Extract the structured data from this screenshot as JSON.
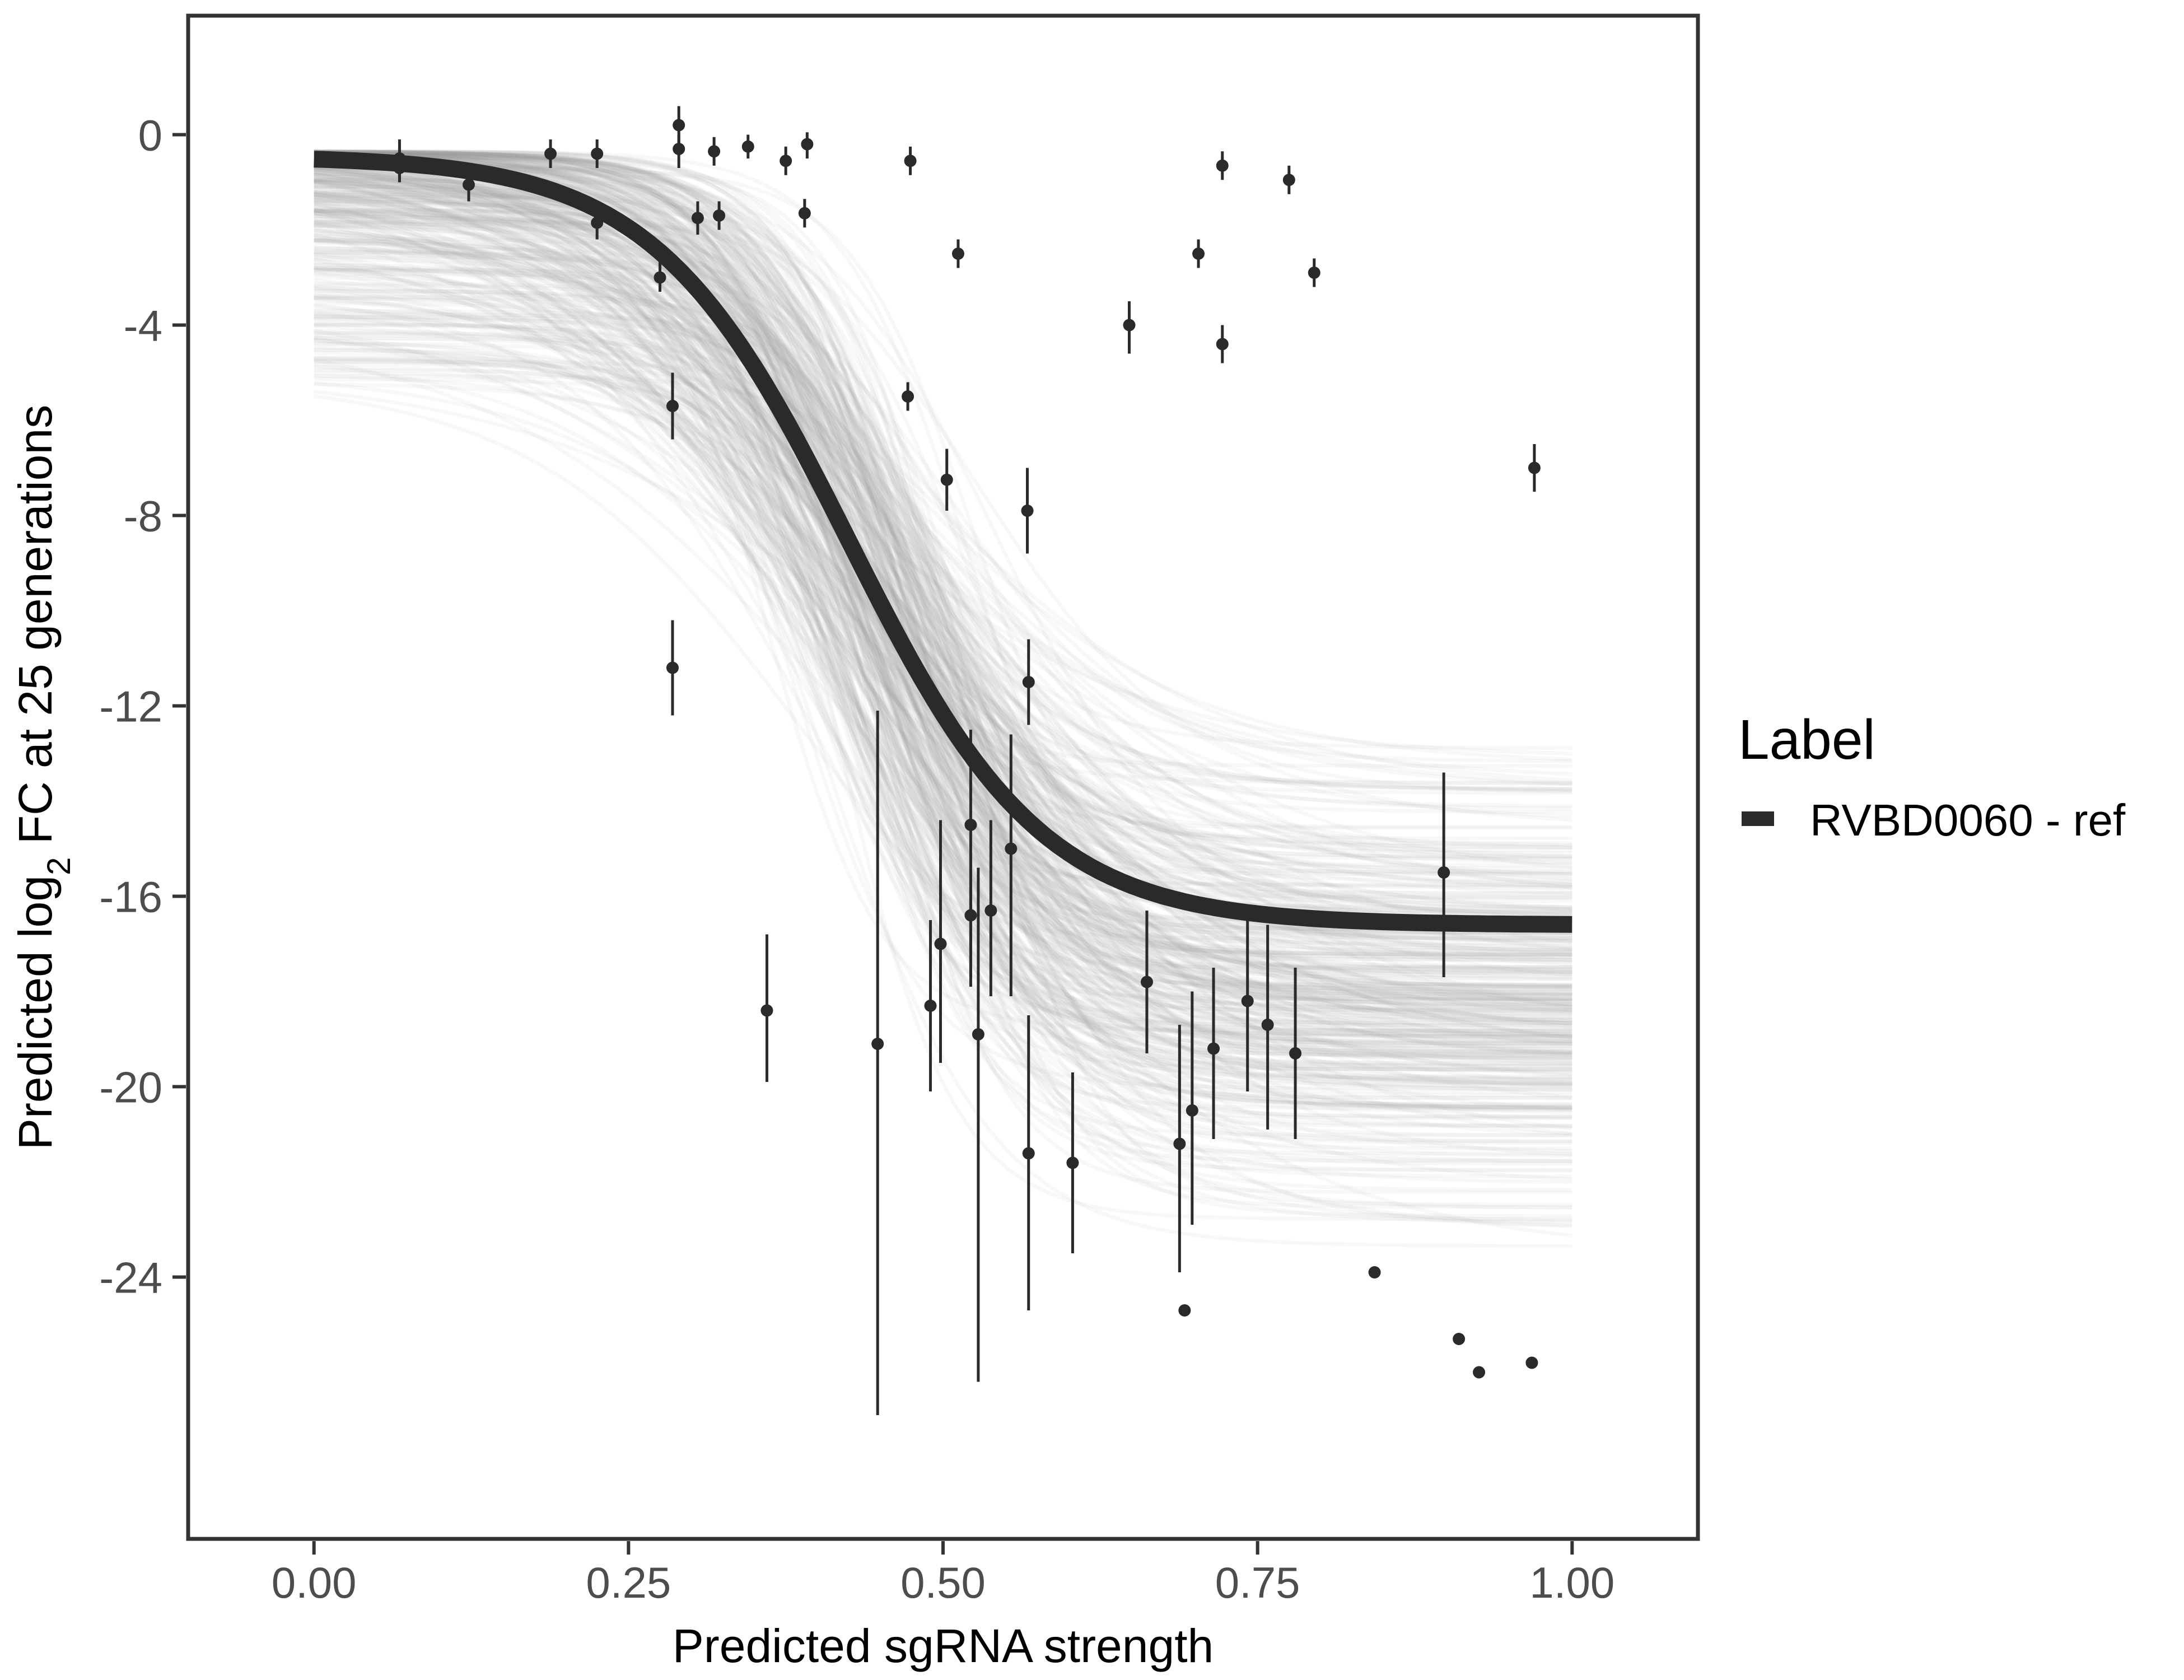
{
  "chart_data": {
    "type": "scatter",
    "xlabel": "Predicted sgRNA strength",
    "ylabel_prefix": "Predicted  log",
    "ylabel_sub": "2",
    "ylabel_suffix": " FC at 25 generations",
    "xlim": [
      -0.1,
      1.1
    ],
    "ylim": [
      -29.5,
      2.5
    ],
    "x_ticks": [
      {
        "value": 0.0,
        "label": "0.00"
      },
      {
        "value": 0.25,
        "label": "0.25"
      },
      {
        "value": 0.5,
        "label": "0.50"
      },
      {
        "value": 0.75,
        "label": "0.75"
      },
      {
        "value": 1.0,
        "label": "1.00"
      }
    ],
    "y_ticks": [
      {
        "value": 0,
        "label": "0"
      },
      {
        "value": -4,
        "label": "-4"
      },
      {
        "value": -8,
        "label": "-8"
      },
      {
        "value": -12,
        "label": "-12"
      },
      {
        "value": -16,
        "label": "-16"
      },
      {
        "value": -20,
        "label": "-20"
      },
      {
        "value": -24,
        "label": "-24"
      }
    ],
    "grid": false,
    "legend": {
      "title": "Label",
      "placement": "right",
      "entries": [
        {
          "label": "RVBD0060 - ref",
          "color": "#2a2a2a"
        }
      ]
    },
    "fit_curve": {
      "name": "RVBD0060 - ref",
      "model": "logistic",
      "top": -0.45,
      "bottom": -16.6,
      "midpoint": 0.425,
      "slope": 13.0,
      "color": "#2a2a2a"
    },
    "posterior_band": {
      "color": "#a0a0a0",
      "top_range": [
        -5.3,
        -0.35
      ],
      "bottom_range": [
        -24.6,
        -11.6
      ],
      "midpoint_range": [
        0.33,
        0.56
      ],
      "slope_range": [
        7,
        22
      ]
    },
    "points": [
      {
        "x": 0.068,
        "y": -0.5,
        "ymin": -0.9,
        "ymax": -0.1
      },
      {
        "x": 0.068,
        "y": -0.7,
        "ymin": -1.0,
        "ymax": -0.3
      },
      {
        "x": 0.123,
        "y": -1.05,
        "ymin": -1.4,
        "ymax": -0.7
      },
      {
        "x": 0.188,
        "y": -0.4,
        "ymin": -0.7,
        "ymax": -0.1
      },
      {
        "x": 0.225,
        "y": -0.4,
        "ymin": -0.7,
        "ymax": -0.1
      },
      {
        "x": 0.225,
        "y": -1.85,
        "ymin": -2.2,
        "ymax": -1.5
      },
      {
        "x": 0.275,
        "y": -3.0,
        "ymin": -3.3,
        "ymax": -2.6
      },
      {
        "x": 0.285,
        "y": -5.7,
        "ymin": -6.4,
        "ymax": -5.0
      },
      {
        "x": 0.285,
        "y": -11.2,
        "ymin": -12.2,
        "ymax": -10.2
      },
      {
        "x": 0.29,
        "y": 0.2,
        "ymin": -0.2,
        "ymax": 0.6
      },
      {
        "x": 0.29,
        "y": -0.3,
        "ymin": -0.7,
        "ymax": 0.0
      },
      {
        "x": 0.305,
        "y": -1.75,
        "ymin": -2.1,
        "ymax": -1.4
      },
      {
        "x": 0.318,
        "y": -0.35,
        "ymin": -0.65,
        "ymax": -0.05
      },
      {
        "x": 0.322,
        "y": -1.7,
        "ymin": -2.0,
        "ymax": -1.4
      },
      {
        "x": 0.345,
        "y": -0.25,
        "ymin": -0.5,
        "ymax": 0.0
      },
      {
        "x": 0.36,
        "y": -18.4,
        "ymin": -19.9,
        "ymax": -16.8
      },
      {
        "x": 0.375,
        "y": -0.55,
        "ymin": -0.85,
        "ymax": -0.25
      },
      {
        "x": 0.39,
        "y": -1.65,
        "ymin": -1.95,
        "ymax": -1.35
      },
      {
        "x": 0.392,
        "y": -0.2,
        "ymin": -0.5,
        "ymax": 0.05
      },
      {
        "x": 0.448,
        "y": -19.1,
        "ymin": -26.9,
        "ymax": -12.1
      },
      {
        "x": 0.472,
        "y": -5.5,
        "ymin": -5.8,
        "ymax": -5.2
      },
      {
        "x": 0.474,
        "y": -0.55,
        "ymin": -0.85,
        "ymax": -0.25
      },
      {
        "x": 0.49,
        "y": -18.3,
        "ymin": -20.1,
        "ymax": -16.5
      },
      {
        "x": 0.498,
        "y": -17.0,
        "ymin": -19.5,
        "ymax": -14.4
      },
      {
        "x": 0.503,
        "y": -7.25,
        "ymin": -7.9,
        "ymax": -6.6
      },
      {
        "x": 0.512,
        "y": -2.5,
        "ymin": -2.8,
        "ymax": -2.2
      },
      {
        "x": 0.522,
        "y": -14.5,
        "ymin": -17.9,
        "ymax": -12.5
      },
      {
        "x": 0.522,
        "y": -16.4,
        "ymin": -17.7,
        "ymax": -15.1
      },
      {
        "x": 0.528,
        "y": -18.9,
        "ymin": -26.2,
        "ymax": -15.4
      },
      {
        "x": 0.538,
        "y": -16.3,
        "ymin": -18.1,
        "ymax": -14.4
      },
      {
        "x": 0.554,
        "y": -15.0,
        "ymin": -18.1,
        "ymax": -12.6
      },
      {
        "x": 0.567,
        "y": -7.9,
        "ymin": -8.8,
        "ymax": -7.0
      },
      {
        "x": 0.568,
        "y": -11.5,
        "ymin": -12.4,
        "ymax": -10.6
      },
      {
        "x": 0.568,
        "y": -21.4,
        "ymin": -24.7,
        "ymax": -18.5
      },
      {
        "x": 0.603,
        "y": -21.6,
        "ymin": -23.5,
        "ymax": -19.7
      },
      {
        "x": 0.648,
        "y": -4.0,
        "ymin": -4.6,
        "ymax": -3.5
      },
      {
        "x": 0.662,
        "y": -17.8,
        "ymin": -19.3,
        "ymax": -16.3
      },
      {
        "x": 0.688,
        "y": -21.2,
        "ymin": -23.9,
        "ymax": -18.7
      },
      {
        "x": 0.692,
        "y": -24.7,
        "ymin": -24.7,
        "ymax": -24.7
      },
      {
        "x": 0.698,
        "y": -20.5,
        "ymin": -22.9,
        "ymax": -18.0
      },
      {
        "x": 0.703,
        "y": -2.5,
        "ymin": -2.8,
        "ymax": -2.2
      },
      {
        "x": 0.715,
        "y": -19.2,
        "ymin": -21.1,
        "ymax": -17.5
      },
      {
        "x": 0.722,
        "y": -0.65,
        "ymin": -0.95,
        "ymax": -0.35
      },
      {
        "x": 0.722,
        "y": -4.4,
        "ymin": -4.8,
        "ymax": -4.0
      },
      {
        "x": 0.742,
        "y": -18.2,
        "ymin": -20.1,
        "ymax": -16.4
      },
      {
        "x": 0.758,
        "y": -18.7,
        "ymin": -20.9,
        "ymax": -16.6
      },
      {
        "x": 0.775,
        "y": -0.95,
        "ymin": -1.25,
        "ymax": -0.65
      },
      {
        "x": 0.78,
        "y": -19.3,
        "ymin": -21.1,
        "ymax": -17.5
      },
      {
        "x": 0.795,
        "y": -2.9,
        "ymin": -3.2,
        "ymax": -2.6
      },
      {
        "x": 0.843,
        "y": -23.9,
        "ymin": -23.9,
        "ymax": -23.9
      },
      {
        "x": 0.898,
        "y": -15.5,
        "ymin": -17.7,
        "ymax": -13.4
      },
      {
        "x": 0.91,
        "y": -25.3,
        "ymin": -25.3,
        "ymax": -25.3
      },
      {
        "x": 0.926,
        "y": -26.0,
        "ymin": -26.0,
        "ymax": -26.0
      },
      {
        "x": 0.968,
        "y": -25.8,
        "ymin": -25.8,
        "ymax": -25.8
      },
      {
        "x": 0.97,
        "y": -7.0,
        "ymin": -7.5,
        "ymax": -6.5
      }
    ]
  }
}
